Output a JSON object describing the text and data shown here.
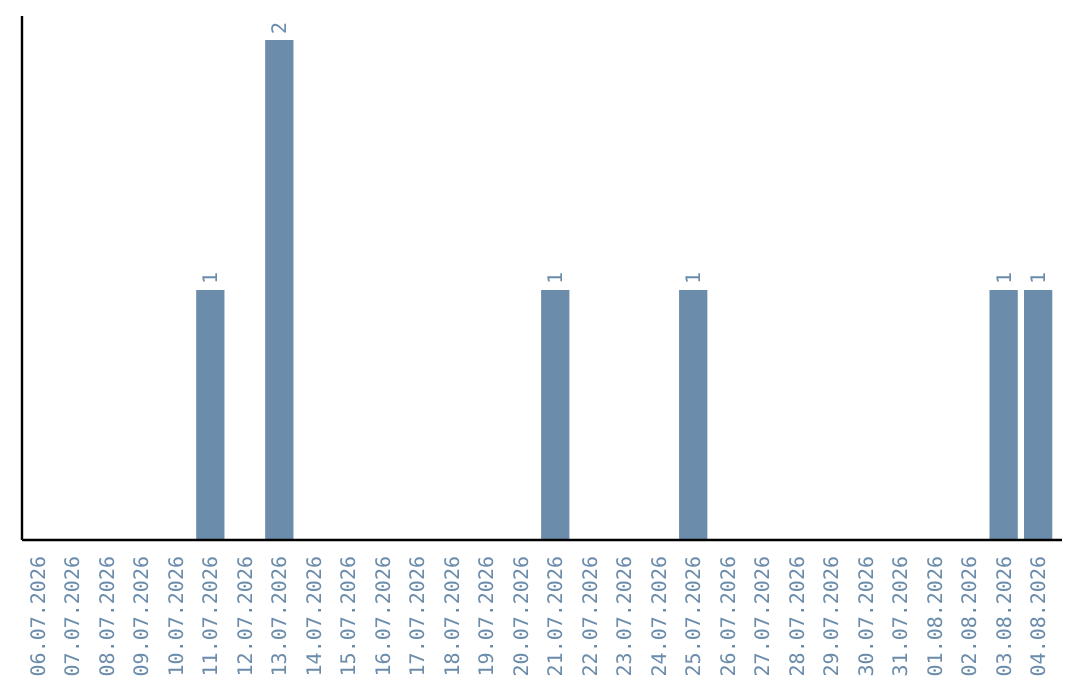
{
  "chart_data": {
    "type": "bar",
    "categories": [
      "06.07.2026",
      "07.07.2026",
      "08.07.2026",
      "09.07.2026",
      "10.07.2026",
      "11.07.2026",
      "12.07.2026",
      "13.07.2026",
      "14.07.2026",
      "15.07.2026",
      "16.07.2026",
      "17.07.2026",
      "18.07.2026",
      "19.07.2026",
      "20.07.2026",
      "21.07.2026",
      "22.07.2026",
      "23.07.2026",
      "24.07.2026",
      "25.07.2026",
      "26.07.2026",
      "27.07.2026",
      "28.07.2026",
      "29.07.2026",
      "30.07.2026",
      "31.07.2026",
      "01.08.2026",
      "02.08.2026",
      "03.08.2026",
      "04.08.2026"
    ],
    "values": [
      0,
      0,
      0,
      0,
      0,
      1,
      0,
      2,
      0,
      0,
      0,
      0,
      0,
      0,
      0,
      1,
      0,
      0,
      0,
      1,
      0,
      0,
      0,
      0,
      0,
      0,
      0,
      0,
      1,
      1
    ],
    "value_labels": [
      null,
      null,
      null,
      null,
      null,
      "1",
      null,
      "2",
      null,
      null,
      null,
      null,
      null,
      null,
      null,
      "1",
      null,
      null,
      null,
      "1",
      null,
      null,
      null,
      null,
      null,
      null,
      null,
      null,
      "1",
      "1"
    ],
    "color": "#6b8cab",
    "ylim": [
      0,
      2
    ]
  }
}
